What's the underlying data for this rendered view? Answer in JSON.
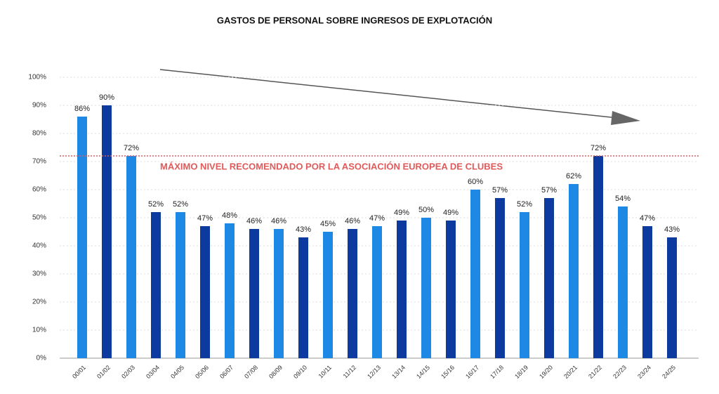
{
  "chart_data": {
    "type": "bar",
    "title": "GASTOS DE PERSONAL SOBRE INGRESOS DE EXPLOTACIÓN",
    "categories": [
      "00/01",
      "01/02",
      "02/03",
      "03/04",
      "04/05",
      "05/06",
      "06/07",
      "07/08",
      "08/09",
      "09/10",
      "10/11",
      "11/12",
      "12/13",
      "13/14",
      "14/15",
      "15/16",
      "16/17",
      "17/18",
      "18/19",
      "19/20",
      "20/21",
      "21/22",
      "22/23",
      "23/24",
      "24/25"
    ],
    "values": [
      86,
      90,
      72,
      52,
      52,
      47,
      48,
      46,
      46,
      43,
      45,
      46,
      47,
      49,
      50,
      49,
      60,
      57,
      52,
      57,
      62,
      72,
      54,
      47,
      43
    ],
    "value_labels": [
      "86%",
      "90%",
      "72%",
      "52%",
      "52%",
      "47%",
      "48%",
      "46%",
      "46%",
      "43%",
      "45%",
      "46%",
      "47%",
      "49%",
      "50%",
      "49%",
      "60%",
      "57%",
      "52%",
      "57%",
      "62%",
      "72%",
      "54%",
      "47%",
      "43%"
    ],
    "colors": [
      "#1e88e5",
      "#0d3a9e",
      "#1e88e5",
      "#0d3a9e",
      "#1e88e5",
      "#0d3a9e",
      "#1e88e5",
      "#0d3a9e",
      "#1e88e5",
      "#0d3a9e",
      "#1e88e5",
      "#0d3a9e",
      "#1e88e5",
      "#0d3a9e",
      "#1e88e5",
      "#0d3a9e",
      "#1e88e5",
      "#0d3a9e",
      "#1e88e5",
      "#0d3a9e",
      "#1e88e5",
      "#0d3a9e",
      "#1e88e5",
      "#0d3a9e",
      "#0d3a9e"
    ],
    "ylim": [
      0,
      100
    ],
    "yticks": [
      {
        "value": 0,
        "label": "0%"
      },
      {
        "value": 10,
        "label": "10%"
      },
      {
        "value": 20,
        "label": "20%"
      },
      {
        "value": 30,
        "label": "30%"
      },
      {
        "value": 40,
        "label": "40%"
      },
      {
        "value": 50,
        "label": "50%"
      },
      {
        "value": 60,
        "label": "60%"
      },
      {
        "value": 70,
        "label": "70%"
      },
      {
        "value": 80,
        "label": "80%"
      },
      {
        "value": 90,
        "label": "90%"
      },
      {
        "value": 100,
        "label": "100%"
      }
    ],
    "grid": true,
    "reference_line": {
      "value": 72,
      "label": "MÁXIMO NIVEL RECOMENDADO POR LA ASOCIACIÓN EUROPEA DE CLUBES",
      "color": "#e05a5a"
    }
  }
}
